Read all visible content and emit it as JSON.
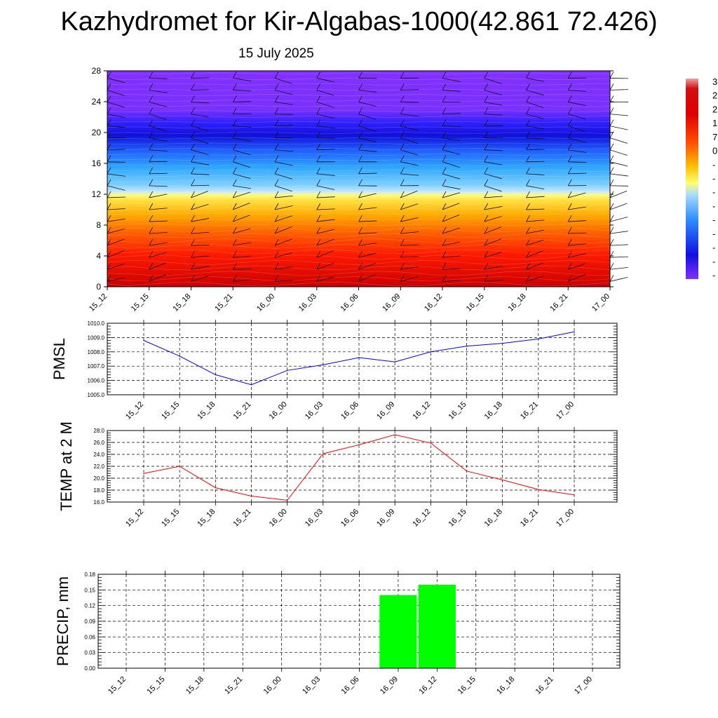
{
  "title": "Kazhydromet for Kir-Algabas-1000(42.861 72.426)",
  "subtitle": "15 July 2025",
  "time_labels": [
    "15_12",
    "15_15",
    "15_18",
    "15_21",
    "16_00",
    "16_03",
    "16_06",
    "16_09",
    "16_12",
    "16_15",
    "16_18",
    "16_21",
    "17_00"
  ],
  "chart_data": [
    {
      "type": "heatmap",
      "title": "",
      "xlabel": "",
      "ylabel": "",
      "x": [
        "15_12",
        "15_15",
        "15_18",
        "15_21",
        "16_00",
        "16_03",
        "16_06",
        "16_09",
        "16_12",
        "16_15",
        "16_18",
        "16_21",
        "17_00"
      ],
      "y_ticks": [
        0,
        4,
        8,
        12,
        16,
        20,
        24,
        28
      ],
      "ylim": [
        0,
        28
      ],
      "colorbar_labels": [
        "3",
        "2",
        "2",
        "1",
        "7",
        "0",
        "-",
        "-",
        "-",
        "-",
        "-",
        "-",
        "-",
        "-",
        "-"
      ],
      "colors": {
        "low": "#d10000",
        "mid_warm": "#ffb000",
        "freeze": "#ffff70",
        "cold": "#30b0ff",
        "very_cold": "#1010e0",
        "top": "#8030ff"
      },
      "wind_barbs": true
    },
    {
      "type": "line",
      "ylabel": "PMSL",
      "x": [
        "15_12",
        "15_15",
        "15_18",
        "15_21",
        "16_00",
        "16_03",
        "16_06",
        "16_09",
        "16_12",
        "16_15",
        "16_18",
        "16_21",
        "17_00"
      ],
      "values": [
        1008.8,
        1007.7,
        1006.4,
        1005.7,
        1006.7,
        1007.1,
        1007.6,
        1007.3,
        1008.0,
        1008.4,
        1008.6,
        1008.9,
        1009.4
      ],
      "y_ticks": [
        "1005.0",
        "1006.0",
        "1007.0",
        "1008.0",
        "1009.0",
        "1010.0"
      ],
      "ylim": [
        1005,
        1010
      ],
      "color": "#0000ff",
      "grid": true
    },
    {
      "type": "line",
      "ylabel": "TEMP at 2 M",
      "x": [
        "15_12",
        "15_15",
        "15_18",
        "15_21",
        "16_00",
        "16_03",
        "16_06",
        "16_09",
        "16_12",
        "16_15",
        "16_18",
        "16_21",
        "17_00"
      ],
      "values": [
        20.8,
        22.0,
        18.4,
        17.0,
        16.3,
        24.1,
        25.6,
        27.3,
        25.9,
        21.2,
        19.7,
        18.1,
        17.2
      ],
      "y_ticks": [
        "16.0",
        "18.0",
        "20.0",
        "22.0",
        "24.0",
        "26.0",
        "28.0"
      ],
      "ylim": [
        16,
        28
      ],
      "color": "#ff0000",
      "grid": true
    },
    {
      "type": "bar",
      "ylabel": "PRECIP, mm",
      "categories": [
        "15_12",
        "15_15",
        "15_18",
        "15_21",
        "16_00",
        "16_03",
        "16_06",
        "16_09",
        "16_12",
        "16_15",
        "16_18",
        "16_21",
        "17_00"
      ],
      "values": [
        0,
        0,
        0,
        0,
        0,
        0,
        0,
        0.14,
        0.16,
        0,
        0,
        0,
        0
      ],
      "y_ticks": [
        "0.00",
        "0.03",
        "0.06",
        "0.09",
        "0.12",
        "0.15",
        "0.18"
      ],
      "ylim": [
        0,
        0.18
      ],
      "color": "#00ff00",
      "grid": true
    }
  ]
}
